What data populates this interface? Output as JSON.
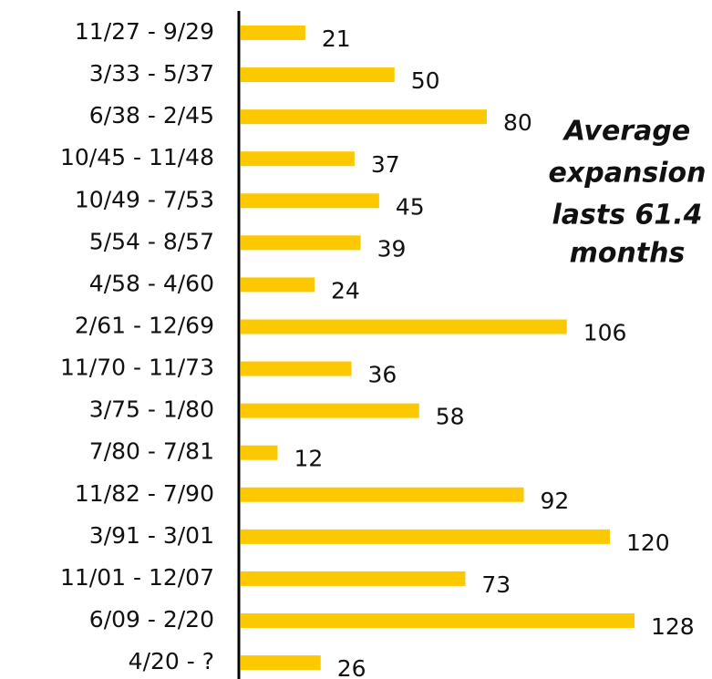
{
  "chart_data": {
    "type": "bar",
    "orientation": "horizontal",
    "categories": [
      "11/27 - 9/29",
      "3/33 - 5/37",
      "6/38 - 2/45",
      "10/45 - 11/48",
      "10/49 - 7/53",
      "5/54 - 8/57",
      "4/58 - 4/60",
      "2/61 - 12/69",
      "11/70 - 11/73",
      "3/75 - 1/80",
      "7/80 - 7/81",
      "11/82 - 7/90",
      "3/91 - 3/01",
      "11/01 - 12/07",
      "6/09 - 2/20",
      "4/20 - ?"
    ],
    "values": [
      21,
      50,
      80,
      37,
      45,
      39,
      24,
      106,
      36,
      58,
      12,
      92,
      120,
      73,
      128,
      26
    ],
    "color": "#fcc900",
    "annotation": [
      "Average",
      "expansion",
      "lasts 61.4",
      "months"
    ]
  }
}
